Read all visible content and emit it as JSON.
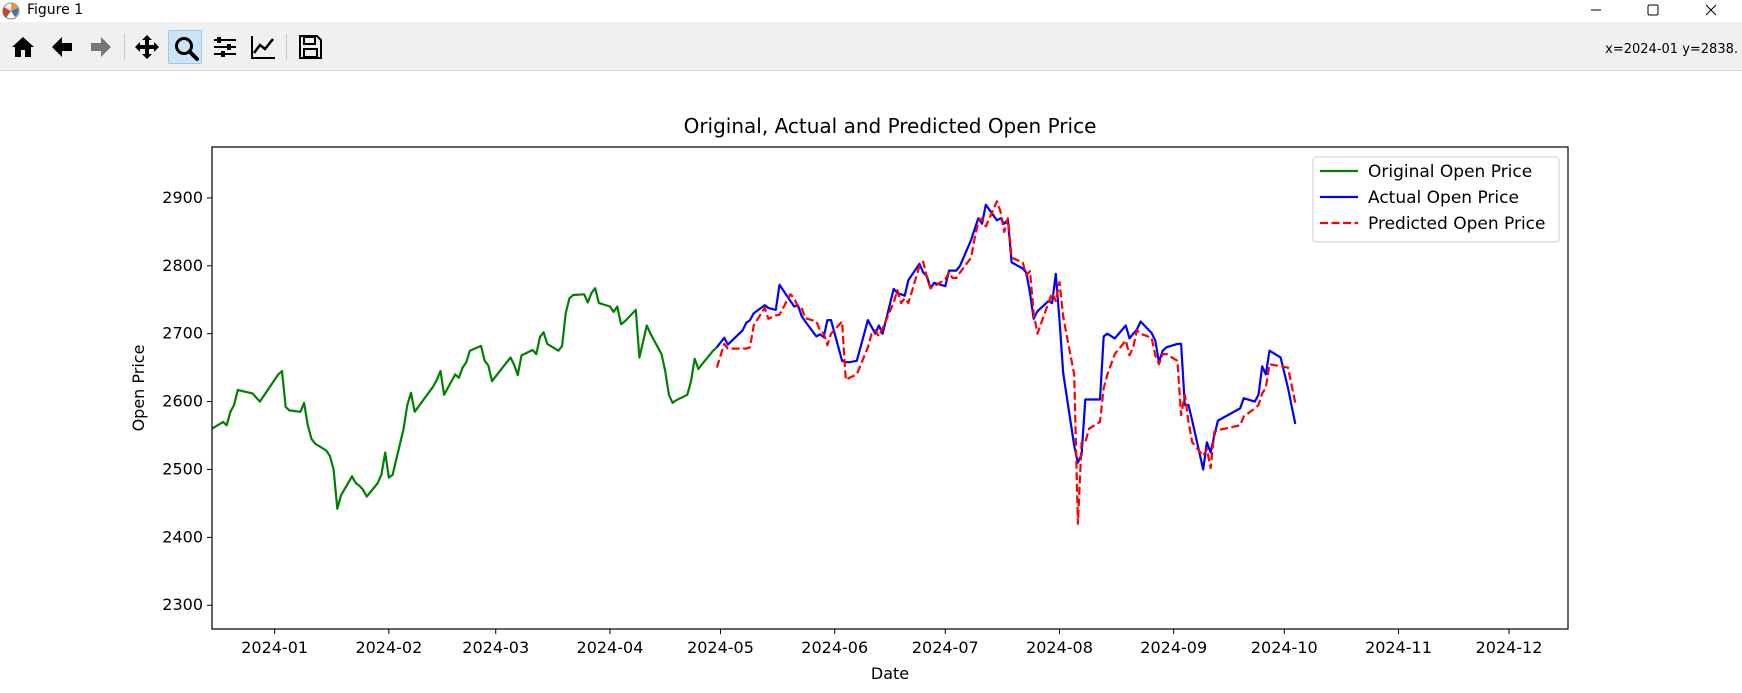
{
  "window": {
    "title": "Figure 1"
  },
  "toolbar": {
    "tools": [
      "home-icon",
      "back-arrow-icon",
      "forward-arrow-icon",
      "pan-move-icon",
      "zoom-magnifier-icon",
      "subplots-config-icon",
      "axes-edit-icon",
      "save-floppy-icon"
    ],
    "active_tool": "zoom-magnifier-icon",
    "coords": "x=2024-01 y=2838."
  },
  "colors": {
    "original": "#008000",
    "actual": "#0000ff",
    "predicted": "#ff0000",
    "active_tool": "#cce4f7"
  },
  "chart_data": {
    "type": "line",
    "title": "Original, Actual and Predicted Open Price",
    "xlabel": "Date",
    "ylabel": "Open Price",
    "xlim": [
      "2023-12-15",
      "2024-12-17"
    ],
    "ylim": [
      2265,
      2975
    ],
    "yticks": [
      2300,
      2400,
      2500,
      2600,
      2700,
      2800,
      2900
    ],
    "xticks": [
      "2024-01",
      "2024-02",
      "2024-03",
      "2024-04",
      "2024-05",
      "2024-06",
      "2024-07",
      "2024-08",
      "2024-09",
      "2024-10",
      "2024-11",
      "2024-12"
    ],
    "legend_position": "top-right",
    "grid": false,
    "series": [
      {
        "name": "Original Open Price",
        "color": "#008000",
        "style": "solid",
        "x": [
          "2023-12-15",
          "2023-12-18",
          "2023-12-19",
          "2023-12-20",
          "2023-12-21",
          "2023-12-22",
          "2023-12-26",
          "2023-12-28",
          "2024-01-02",
          "2024-01-03",
          "2024-01-04",
          "2024-01-05",
          "2024-01-08",
          "2024-01-09",
          "2024-01-10",
          "2024-01-11",
          "2024-01-12",
          "2024-01-15",
          "2024-01-16",
          "2024-01-17",
          "2024-01-18",
          "2024-01-19",
          "2024-01-22",
          "2024-01-23",
          "2024-01-24",
          "2024-01-25",
          "2024-01-26",
          "2024-01-29",
          "2024-01-30",
          "2024-01-31",
          "2024-02-01",
          "2024-02-02",
          "2024-02-05",
          "2024-02-06",
          "2024-02-07",
          "2024-02-08",
          "2024-02-13",
          "2024-02-14",
          "2024-02-15",
          "2024-02-16",
          "2024-02-19",
          "2024-02-20",
          "2024-02-21",
          "2024-02-22",
          "2024-02-23",
          "2024-02-26",
          "2024-02-27",
          "2024-02-28",
          "2024-02-29",
          "2024-03-04",
          "2024-03-05",
          "2024-03-06",
          "2024-03-07",
          "2024-03-08",
          "2024-03-11",
          "2024-03-12",
          "2024-03-13",
          "2024-03-14",
          "2024-03-15",
          "2024-03-18",
          "2024-03-19",
          "2024-03-20",
          "2024-03-21",
          "2024-03-22",
          "2024-03-25",
          "2024-03-26",
          "2024-03-27",
          "2024-03-28",
          "2024-03-29",
          "2024-04-01",
          "2024-04-02",
          "2024-04-03",
          "2024-04-04",
          "2024-04-05",
          "2024-04-08",
          "2024-04-09",
          "2024-04-11",
          "2024-04-12",
          "2024-04-15",
          "2024-04-16",
          "2024-04-17",
          "2024-04-18",
          "2024-04-19",
          "2024-04-22",
          "2024-04-23",
          "2024-04-24",
          "2024-04-25",
          "2024-04-26",
          "2024-04-29",
          "2024-04-30"
        ],
        "y": [
          2560,
          2570,
          2565,
          2585,
          2595,
          2617,
          2612,
          2600,
          2640,
          2645,
          2592,
          2587,
          2585,
          2598,
          2565,
          2545,
          2538,
          2528,
          2520,
          2500,
          2442,
          2462,
          2490,
          2480,
          2476,
          2470,
          2460,
          2480,
          2493,
          2525,
          2488,
          2492,
          2560,
          2595,
          2613,
          2585,
          2622,
          2632,
          2645,
          2610,
          2640,
          2635,
          2650,
          2658,
          2675,
          2682,
          2660,
          2653,
          2630,
          2658,
          2665,
          2654,
          2639,
          2668,
          2676,
          2670,
          2695,
          2702,
          2685,
          2675,
          2682,
          2730,
          2752,
          2757,
          2758,
          2746,
          2760,
          2767,
          2745,
          2740,
          2732,
          2740,
          2714,
          2718,
          2735,
          2665,
          2712,
          2700,
          2670,
          2645,
          2610,
          2598,
          2602,
          2610,
          2630,
          2663,
          2648,
          2655,
          2675,
          2680
        ]
      },
      {
        "name": "Actual Open Price",
        "color": "#0000ff",
        "style": "solid",
        "x": [
          "2024-04-30",
          "2024-05-02",
          "2024-05-03",
          "2024-05-07",
          "2024-05-08",
          "2024-05-09",
          "2024-05-10",
          "2024-05-13",
          "2024-05-14",
          "2024-05-16",
          "2024-05-17",
          "2024-05-20",
          "2024-05-21",
          "2024-05-22",
          "2024-05-23",
          "2024-05-24",
          "2024-05-27",
          "2024-05-28",
          "2024-05-29",
          "2024-05-30",
          "2024-05-31",
          "2024-06-03",
          "2024-06-04",
          "2024-06-05",
          "2024-06-07",
          "2024-06-10",
          "2024-06-11",
          "2024-06-12",
          "2024-06-13",
          "2024-06-14",
          "2024-06-17",
          "2024-06-18",
          "2024-06-19",
          "2024-06-20",
          "2024-06-21",
          "2024-06-24",
          "2024-06-25",
          "2024-06-26",
          "2024-06-27",
          "2024-06-28",
          "2024-07-01",
          "2024-07-02",
          "2024-07-03",
          "2024-07-04",
          "2024-07-05",
          "2024-07-08",
          "2024-07-09",
          "2024-07-10",
          "2024-07-11",
          "2024-07-12",
          "2024-07-15",
          "2024-07-16",
          "2024-07-17",
          "2024-07-18",
          "2024-07-19",
          "2024-07-22",
          "2024-07-23",
          "2024-07-24",
          "2024-07-25",
          "2024-07-26",
          "2024-07-29",
          "2024-07-30",
          "2024-07-31",
          "2024-08-01",
          "2024-08-02",
          "2024-08-05",
          "2024-08-06",
          "2024-08-07",
          "2024-08-08",
          "2024-08-09",
          "2024-08-12",
          "2024-08-13",
          "2024-08-14",
          "2024-08-16",
          "2024-08-19",
          "2024-08-20",
          "2024-08-21",
          "2024-08-22",
          "2024-08-23",
          "2024-08-26",
          "2024-08-27",
          "2024-08-28",
          "2024-08-29",
          "2024-08-30",
          "2024-09-02",
          "2024-09-03",
          "2024-09-04",
          "2024-09-05",
          "2024-09-06",
          "2024-09-09",
          "2024-09-10",
          "2024-09-11",
          "2024-09-12",
          "2024-09-13",
          "2024-09-19",
          "2024-09-20",
          "2024-09-23",
          "2024-09-24",
          "2024-09-25",
          "2024-09-26",
          "2024-09-27",
          "2024-09-30",
          "2024-10-02",
          "2024-10-04"
        ],
        "y": [
          2680,
          2694,
          2684,
          2705,
          2716,
          2720,
          2730,
          2742,
          2738,
          2735,
          2772,
          2748,
          2740,
          2742,
          2726,
          2718,
          2696,
          2699,
          2695,
          2720,
          2720,
          2660,
          2658,
          2658,
          2660,
          2720,
          2710,
          2700,
          2712,
          2700,
          2766,
          2760,
          2758,
          2756,
          2779,
          2803,
          2790,
          2785,
          2767,
          2775,
          2770,
          2793,
          2793,
          2793,
          2800,
          2838,
          2855,
          2870,
          2862,
          2890,
          2867,
          2870,
          2862,
          2868,
          2805,
          2796,
          2790,
          2760,
          2722,
          2733,
          2748,
          2745,
          2788,
          2720,
          2642,
          2535,
          2510,
          2522,
          2603,
          2603,
          2603,
          2696,
          2700,
          2693,
          2712,
          2693,
          2700,
          2706,
          2718,
          2701,
          2690,
          2658,
          2675,
          2680,
          2685,
          2685,
          2595,
          2595,
          2572,
          2500,
          2540,
          2525,
          2550,
          2572,
          2590,
          2605,
          2600,
          2610,
          2652,
          2640,
          2675,
          2665,
          2620,
          2567
        ]
      },
      {
        "name": "Predicted Open Price",
        "color": "#ff0000",
        "style": "dashed",
        "x": [
          "2024-04-30",
          "2024-05-02",
          "2024-05-03",
          "2024-05-07",
          "2024-05-08",
          "2024-05-09",
          "2024-05-10",
          "2024-05-13",
          "2024-05-14",
          "2024-05-16",
          "2024-05-17",
          "2024-05-20",
          "2024-05-21",
          "2024-05-22",
          "2024-05-23",
          "2024-05-24",
          "2024-05-27",
          "2024-05-28",
          "2024-05-29",
          "2024-05-30",
          "2024-05-31",
          "2024-06-03",
          "2024-06-04",
          "2024-06-05",
          "2024-06-07",
          "2024-06-10",
          "2024-06-11",
          "2024-06-12",
          "2024-06-13",
          "2024-06-14",
          "2024-06-17",
          "2024-06-18",
          "2024-06-19",
          "2024-06-20",
          "2024-06-21",
          "2024-06-24",
          "2024-06-25",
          "2024-06-26",
          "2024-06-27",
          "2024-06-28",
          "2024-07-01",
          "2024-07-02",
          "2024-07-03",
          "2024-07-04",
          "2024-07-05",
          "2024-07-08",
          "2024-07-09",
          "2024-07-10",
          "2024-07-11",
          "2024-07-12",
          "2024-07-15",
          "2024-07-16",
          "2024-07-17",
          "2024-07-18",
          "2024-07-19",
          "2024-07-22",
          "2024-07-23",
          "2024-07-24",
          "2024-07-25",
          "2024-07-26",
          "2024-07-29",
          "2024-07-30",
          "2024-07-31",
          "2024-08-01",
          "2024-08-02",
          "2024-08-05",
          "2024-08-06",
          "2024-08-07",
          "2024-08-08",
          "2024-08-09",
          "2024-08-12",
          "2024-08-13",
          "2024-08-14",
          "2024-08-16",
          "2024-08-19",
          "2024-08-20",
          "2024-08-21",
          "2024-08-22",
          "2024-08-23",
          "2024-08-26",
          "2024-08-27",
          "2024-08-28",
          "2024-08-29",
          "2024-08-30",
          "2024-09-02",
          "2024-09-03",
          "2024-09-04",
          "2024-09-05",
          "2024-09-06",
          "2024-09-09",
          "2024-09-10",
          "2024-09-11",
          "2024-09-12",
          "2024-09-13",
          "2024-09-19",
          "2024-09-20",
          "2024-09-23",
          "2024-09-24",
          "2024-09-25",
          "2024-09-26",
          "2024-09-27",
          "2024-09-30",
          "2024-10-02",
          "2024-10-04"
        ],
        "y": [
          2650,
          2685,
          2678,
          2678,
          2678,
          2680,
          2712,
          2738,
          2722,
          2727,
          2728,
          2758,
          2752,
          2740,
          2738,
          2723,
          2718,
          2705,
          2700,
          2683,
          2700,
          2718,
          2632,
          2635,
          2640,
          2680,
          2700,
          2705,
          2696,
          2708,
          2746,
          2764,
          2745,
          2752,
          2745,
          2800,
          2806,
          2783,
          2767,
          2770,
          2780,
          2790,
          2782,
          2782,
          2790,
          2812,
          2842,
          2865,
          2870,
          2858,
          2895,
          2880,
          2850,
          2870,
          2812,
          2805,
          2786,
          2792,
          2730,
          2700,
          2745,
          2760,
          2748,
          2776,
          2725,
          2640,
          2420,
          2540,
          2540,
          2560,
          2570,
          2620,
          2640,
          2670,
          2690,
          2668,
          2680,
          2705,
          2700,
          2694,
          2668,
          2655,
          2670,
          2670,
          2660,
          2580,
          2610,
          2570,
          2540,
          2520,
          2530,
          2502,
          2555,
          2558,
          2565,
          2578,
          2590,
          2595,
          2612,
          2620,
          2655,
          2652,
          2650,
          2598
        ]
      }
    ]
  }
}
